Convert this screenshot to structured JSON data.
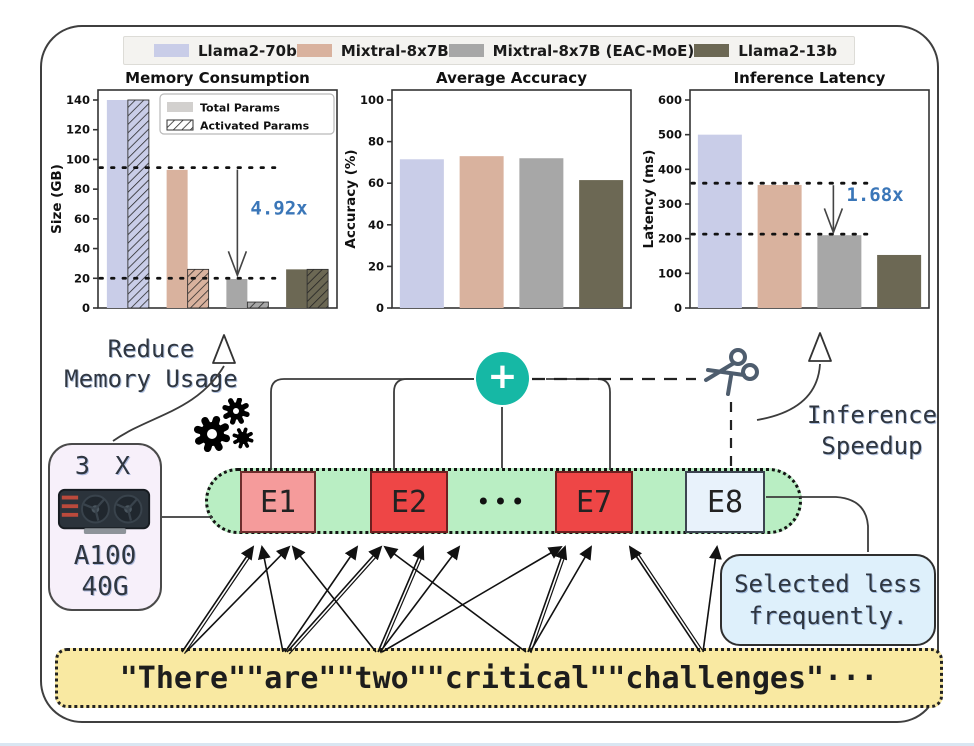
{
  "legend": {
    "items": [
      {
        "label": "Llama2-70b",
        "color": "#c9cde8"
      },
      {
        "label": "Mixtral-8x7B",
        "color": "#d9b29e"
      },
      {
        "label": "Mixtral-8x7B (EAC-MoE)",
        "color": "#a7a7a7"
      },
      {
        "label": "Llama2-13b",
        "color": "#6c6854"
      }
    ]
  },
  "chart_data": [
    {
      "type": "bar",
      "title": "Memory Consumption",
      "ylabel": "Size (GB)",
      "ylim": [
        0,
        140
      ],
      "yticks": [
        0,
        20,
        40,
        60,
        80,
        100,
        120,
        140
      ],
      "categories": [
        "Llama2-70b",
        "Mixtral-8x7B",
        "Mixtral-8x7B (EAC-MoE)",
        "Llama2-13b"
      ],
      "series": [
        {
          "name": "Total Params",
          "values": [
            140,
            93,
            19.5,
            26
          ],
          "hatch": false
        },
        {
          "name": "Activated Params",
          "values": [
            140,
            26,
            4,
            26
          ],
          "hatch": true
        }
      ],
      "bar_colors": [
        "#c9cde8",
        "#d9b29e",
        "#a7a7a7",
        "#6c6854"
      ],
      "reference_lines": [
        94.5,
        20
      ],
      "annotation": {
        "label": "4.92x",
        "color": "#3a76b8",
        "at_group": 2,
        "from": 94.5,
        "to": 22
      },
      "inner_legend": {
        "position": "upper right"
      },
      "grid": false,
      "legend_position": "top figure legend (shared)"
    },
    {
      "type": "bar",
      "title": "Average Accuracy",
      "ylabel": "Accuracy (%)",
      "ylim": [
        0,
        100
      ],
      "yticks": [
        0,
        20,
        40,
        60,
        80,
        100
      ],
      "categories": [
        "Llama2-70b",
        "Mixtral-8x7B",
        "Mixtral-8x7B (EAC-MoE)",
        "Llama2-13b"
      ],
      "values": [
        71.5,
        73,
        72,
        61.5
      ],
      "bar_colors": [
        "#c9cde8",
        "#d9b29e",
        "#a7a7a7",
        "#6c6854"
      ],
      "grid": false
    },
    {
      "type": "bar",
      "title": "Inference Latency",
      "ylabel": "Latency (ms)",
      "ylim": [
        0,
        600
      ],
      "yticks": [
        0,
        100,
        200,
        300,
        400,
        500,
        600
      ],
      "categories": [
        "Llama2-70b",
        "Mixtral-8x7B",
        "Mixtral-8x7B (EAC-MoE)",
        "Llama2-13b"
      ],
      "values": [
        500,
        355,
        210,
        153
      ],
      "bar_colors": [
        "#c9cde8",
        "#d9b29e",
        "#a7a7a7",
        "#6c6854"
      ],
      "reference_lines": [
        360,
        213
      ],
      "annotation": {
        "label": "1.68x",
        "color": "#3a76b8",
        "at_group": 2,
        "from": 360,
        "to": 218
      },
      "grid": false
    }
  ],
  "diagram": {
    "memory_label_line1": "Reduce",
    "memory_label_line2": "Memory Usage",
    "speedup_label_line1": "Inference",
    "speedup_label_line2": "Speedup",
    "gpu": {
      "count": "3 X",
      "model": "A100",
      "memory": "40G"
    },
    "experts": [
      "E1",
      "E2",
      "E7",
      "E8"
    ],
    "experts_ellipsis": "•••",
    "plus_symbol": "+",
    "note_line1": "Selected less",
    "note_line2": "frequently.",
    "tokens": "\"There\"\"are\"\"two\"\"critical\"\"challenges\"···",
    "colors": {
      "band": "#b9eec3",
      "expert_hot_light": "#f59b9b",
      "expert_hot": "#ee4646",
      "expert_cold": "#e8f2fb",
      "plus_circle": "#16b8a5",
      "token_box": "#f9e9a2",
      "note_box": "#def0fb",
      "gpu_box": "#f7f0fa",
      "annotation_blue": "#3a76b8"
    }
  }
}
